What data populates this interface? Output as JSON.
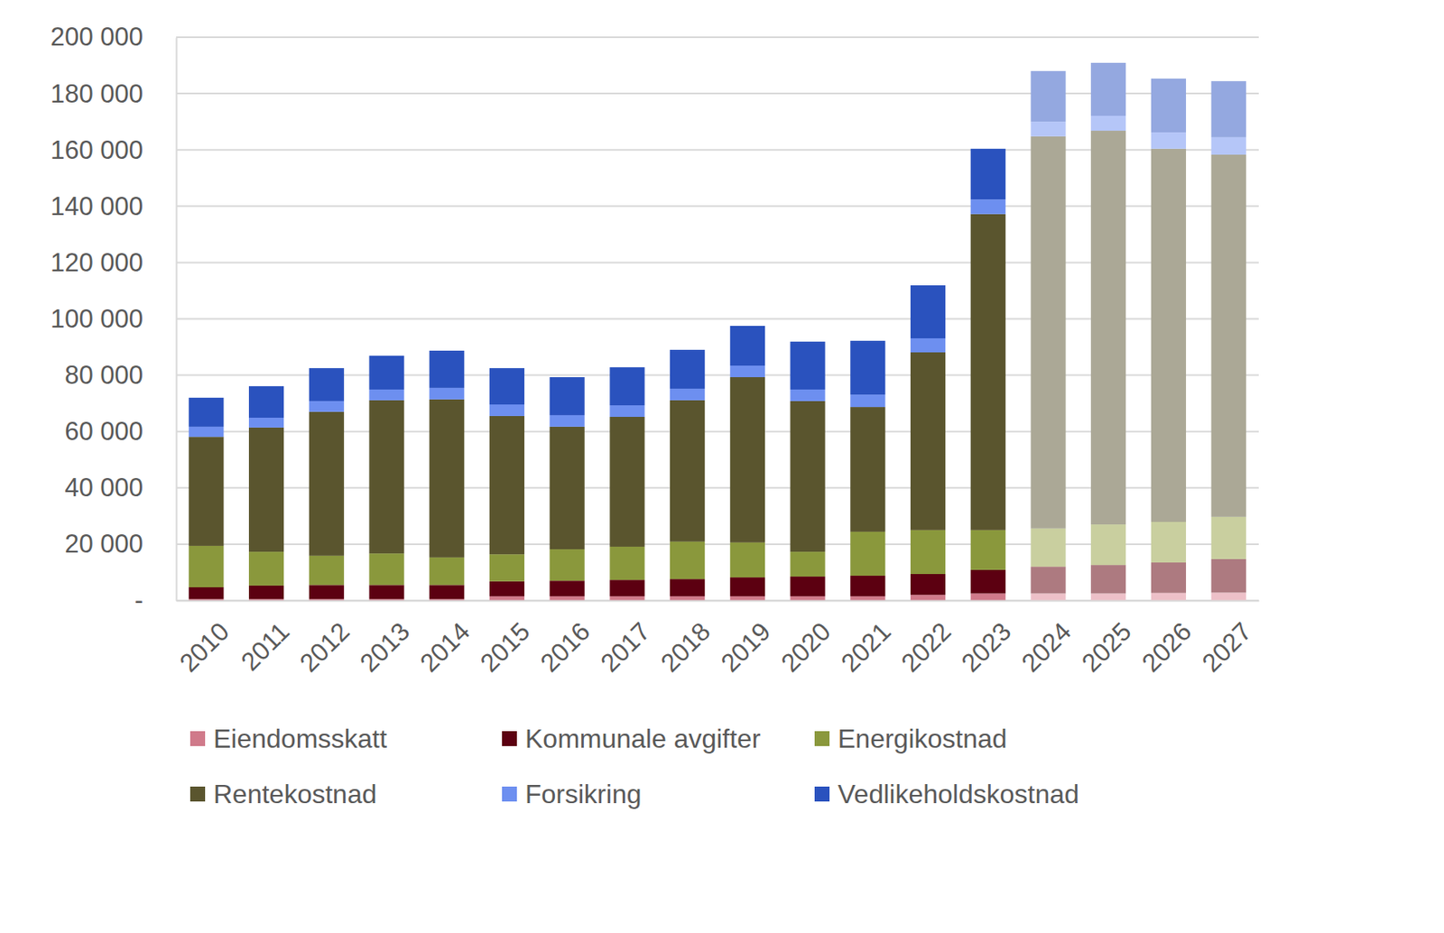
{
  "chart_data": {
    "type": "bar",
    "stacked": true,
    "grid": true,
    "legend": "bottom",
    "categories": [
      "2010",
      "2011",
      "2012",
      "2013",
      "2014",
      "2015",
      "2016",
      "2017",
      "2018",
      "2019",
      "2020",
      "2021",
      "2022",
      "2023",
      "2024",
      "2025",
      "2026",
      "2027"
    ],
    "ylim": [
      0,
      200000
    ],
    "yticks": [
      {
        "value": 0,
        "label": "-"
      },
      {
        "value": 20000,
        "label": "20 000"
      },
      {
        "value": 40000,
        "label": "40 000"
      },
      {
        "value": 60000,
        "label": "60 000"
      },
      {
        "value": 80000,
        "label": "80 000"
      },
      {
        "value": 100000,
        "label": "100 000"
      },
      {
        "value": 120000,
        "label": "120 000"
      },
      {
        "value": 140000,
        "label": "140 000"
      },
      {
        "value": 160000,
        "label": "160 000"
      },
      {
        "value": 180000,
        "label": "180 000"
      },
      {
        "value": 200000,
        "label": "200 000"
      }
    ],
    "series": [
      {
        "name": "Eiendomsskatt",
        "color": "#d07a8a",
        "colors": [
          "#d07a8a",
          "#d07a8a",
          "#d07a8a",
          "#d07a8a",
          "#d07a8a",
          "#d07a8a",
          "#d07a8a",
          "#d07a8a",
          "#d07a8a",
          "#d07a8a",
          "#d07a8a",
          "#d07a8a",
          "#d07a8a",
          "#d07a8a",
          "#edc0c8",
          "#edc0c8",
          "#edc0c8",
          "#edc0c8"
        ],
        "values": [
          500,
          500,
          500,
          500,
          500,
          1500,
          1500,
          1500,
          1500,
          1500,
          1500,
          1500,
          2000,
          2500,
          2500,
          2500,
          2700,
          2800
        ]
      },
      {
        "name": "Kommunale avgifter",
        "color": "#5c0011",
        "colors": [
          "#5c0011",
          "#5c0011",
          "#5c0011",
          "#5c0011",
          "#5c0011",
          "#5c0011",
          "#5c0011",
          "#5c0011",
          "#5c0011",
          "#5c0011",
          "#5c0011",
          "#5c0011",
          "#5c0011",
          "#5c0011",
          "#ad7a80",
          "#ad7a80",
          "#ad7a80",
          "#ad7a80"
        ],
        "values": [
          4200,
          4800,
          5000,
          5000,
          5000,
          5300,
          5500,
          5800,
          6100,
          6700,
          7000,
          7300,
          7400,
          8400,
          9500,
          10100,
          10800,
          11900
        ]
      },
      {
        "name": "Energikostnad",
        "color": "#8a983c",
        "colors": [
          "#8a983c",
          "#8a983c",
          "#8a983c",
          "#8a983c",
          "#8a983c",
          "#8a983c",
          "#8a983c",
          "#8a983c",
          "#8a983c",
          "#8a983c",
          "#8a983c",
          "#8a983c",
          "#8a983c",
          "#8a983c",
          "#c9cf9f",
          "#c9cf9f",
          "#c9cf9f",
          "#c9cf9f"
        ],
        "values": [
          14700,
          12000,
          10400,
          11200,
          9800,
          9600,
          11200,
          11800,
          13300,
          12400,
          8800,
          15600,
          15600,
          14100,
          13600,
          14400,
          14400,
          15000
        ]
      },
      {
        "name": "Rentekostnad",
        "color": "#5a552e",
        "colors": [
          "#5a552e",
          "#5a552e",
          "#5a552e",
          "#5a552e",
          "#5a552e",
          "#5a552e",
          "#5a552e",
          "#5a552e",
          "#5a552e",
          "#5a552e",
          "#5a552e",
          "#5a552e",
          "#5a552e",
          "#5a552e",
          "#aba896",
          "#aba896",
          "#aba896",
          "#aba896"
        ],
        "values": [
          38700,
          44100,
          51100,
          54400,
          56100,
          49100,
          43500,
          46100,
          50200,
          58700,
          53500,
          44300,
          63100,
          112200,
          139200,
          139800,
          132500,
          128600
        ]
      },
      {
        "name": "Forsikring",
        "color": "#6d8ff0",
        "colors": [
          "#6d8ff0",
          "#6d8ff0",
          "#6d8ff0",
          "#6d8ff0",
          "#6d8ff0",
          "#6d8ff0",
          "#6d8ff0",
          "#6d8ff0",
          "#6d8ff0",
          "#6d8ff0",
          "#6d8ff0",
          "#6d8ff0",
          "#6d8ff0",
          "#6d8ff0",
          "#b5c6f8",
          "#b5c6f8",
          "#b5c6f8",
          "#b5c6f8"
        ],
        "values": [
          3600,
          3500,
          3800,
          3800,
          4100,
          4100,
          4100,
          4100,
          4100,
          4100,
          4100,
          4400,
          5000,
          5200,
          5200,
          5300,
          5800,
          6200
        ]
      },
      {
        "name": "Vedlikeholdskostnad",
        "color": "#2a52be",
        "colors": [
          "#2a52be",
          "#2a52be",
          "#2a52be",
          "#2a52be",
          "#2a52be",
          "#2a52be",
          "#2a52be",
          "#2a52be",
          "#2a52be",
          "#2a52be",
          "#2a52be",
          "#2a52be",
          "#2a52be",
          "#2a52be",
          "#94a8e0",
          "#94a8e0",
          "#94a8e0",
          "#94a8e0"
        ],
        "values": [
          10300,
          11200,
          11700,
          12000,
          13200,
          12900,
          13500,
          13500,
          13800,
          14100,
          17000,
          19100,
          18800,
          18000,
          18000,
          18800,
          19100,
          19900
        ]
      }
    ]
  }
}
